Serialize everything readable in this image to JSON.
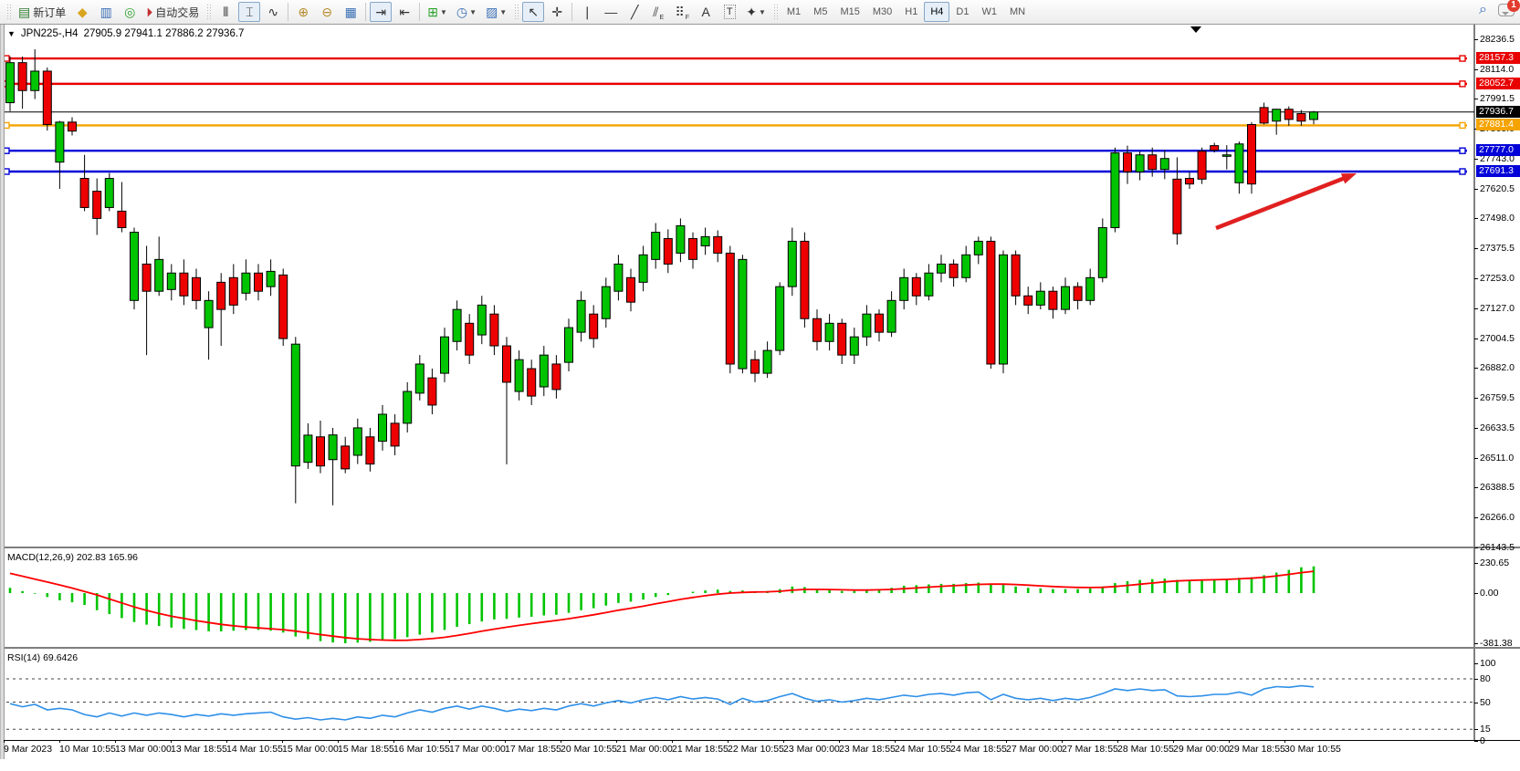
{
  "toolbar": {
    "new_order_label": "新订单",
    "auto_trading_label": "自动交易",
    "timeframes": [
      "M1",
      "M5",
      "M15",
      "M30",
      "H1",
      "H4",
      "D1",
      "W1",
      "MN"
    ],
    "active_timeframe": "H4",
    "notification_count": "1"
  },
  "chart": {
    "title_symbol": "JPN225-,H4",
    "title_ohlc": "27905.9 27941.1 27886.2 27936.7",
    "macd_label": "MACD(12,26,9) 202.83 165.96",
    "rsi_label": "RSI(14) 69.6426"
  },
  "chart_data": {
    "type": "candlestick",
    "symbol": "JPN225-",
    "period": "H4",
    "last_ohlc": {
      "open": 27905.9,
      "high": 27941.1,
      "low": 27886.2,
      "close": 27936.7
    },
    "colors": {
      "bull": "#00c400",
      "bear": "#ee0000",
      "outline": "#000000",
      "hline_red": "#e80000",
      "hline_orange": "#f5a300",
      "hline_blue": "#0000d8",
      "arrow": "#e02020",
      "rsi_line": "#2e8fe8",
      "macd_hist": "#00c400",
      "macd_signal": "#ff0000"
    },
    "price_axis_ticks": [
      28236.5,
      28114.0,
      27991.5,
      27869.0,
      27743.0,
      27620.5,
      27498.0,
      27375.5,
      27253.0,
      27127.0,
      27004.5,
      26882.0,
      26759.5,
      26633.5,
      26511.0,
      26388.5,
      26266.0,
      26143.5
    ],
    "price_badges": [
      {
        "value": "28157.3",
        "price": 28157.3,
        "color": "#e80000",
        "kind": "hline"
      },
      {
        "value": "28052.7",
        "price": 28052.7,
        "color": "#e80000",
        "kind": "hline"
      },
      {
        "value": "27936.7",
        "price": 27936.7,
        "color": "#000000",
        "kind": "bid"
      },
      {
        "value": "27881.4",
        "price": 27881.4,
        "color": "#f5a300",
        "kind": "hline"
      },
      {
        "value": "27777.0",
        "price": 27777.0,
        "color": "#0000d8",
        "kind": "hline"
      },
      {
        "value": "27691.3",
        "price": 27691.3,
        "color": "#0000d8",
        "kind": "hline"
      }
    ],
    "time_labels": [
      "9 Mar 2023",
      "10 Mar 10:55",
      "13 Mar 00:00",
      "13 Mar 18:55",
      "14 Mar 10:55",
      "15 Mar 00:00",
      "15 Mar 18:55",
      "16 Mar 10:55",
      "17 Mar 00:00",
      "17 Mar 18:55",
      "20 Mar 10:55",
      "21 Mar 00:00",
      "21 Mar 18:55",
      "22 Mar 10:55",
      "23 Mar 00:00",
      "23 Mar 18:55",
      "24 Mar 10:55",
      "24 Mar 18:55",
      "27 Mar 00:00",
      "27 Mar 18:55",
      "28 Mar 10:55",
      "29 Mar 00:00",
      "29 Mar 18:55",
      "30 Mar 10:55"
    ],
    "candles": [
      [
        27975,
        28165,
        27940,
        28140
      ],
      [
        28140,
        28165,
        27950,
        28025
      ],
      [
        28025,
        28195,
        27990,
        28105
      ],
      [
        28105,
        28120,
        27860,
        27885
      ],
      [
        27730,
        27900,
        27620,
        27895
      ],
      [
        27895,
        27915,
        27840,
        27858
      ],
      [
        27663,
        27760,
        27528,
        27543
      ],
      [
        27610,
        27663,
        27430,
        27498
      ],
      [
        27543,
        27685,
        27528,
        27663
      ],
      [
        27528,
        27648,
        27441,
        27460
      ],
      [
        27160,
        27460,
        27123,
        27441
      ],
      [
        27310,
        27385,
        26935,
        27198
      ],
      [
        27198,
        27423,
        27179,
        27329
      ],
      [
        27205,
        27310,
        27160,
        27273
      ],
      [
        27273,
        27329,
        27141,
        27179
      ],
      [
        27254,
        27291,
        27123,
        27160
      ],
      [
        27048,
        27198,
        26916,
        27160
      ],
      [
        27235,
        27273,
        26973,
        27123
      ],
      [
        27254,
        27310,
        27104,
        27141
      ],
      [
        27190,
        27329,
        27160,
        27273
      ],
      [
        27273,
        27310,
        27160,
        27198
      ],
      [
        27217,
        27329,
        27179,
        27280
      ],
      [
        27265,
        27291,
        26973,
        27003
      ],
      [
        26478,
        27010,
        26324,
        26980
      ],
      [
        26493,
        26654,
        26466,
        26605
      ],
      [
        26598,
        26665,
        26448,
        26478
      ],
      [
        26504,
        26635,
        26316,
        26606
      ],
      [
        26560,
        26598,
        26448,
        26466
      ],
      [
        26522,
        26673,
        26486,
        26635
      ],
      [
        26598,
        26635,
        26455,
        26486
      ],
      [
        26580,
        26729,
        26541,
        26691
      ],
      [
        26654,
        26691,
        26522,
        26560
      ],
      [
        26654,
        26823,
        26616,
        26785
      ],
      [
        26778,
        26935,
        26748,
        26898
      ],
      [
        26841,
        26879,
        26691,
        26729
      ],
      [
        26860,
        27048,
        26823,
        27010
      ],
      [
        26991,
        27160,
        26954,
        27123
      ],
      [
        27066,
        27104,
        26898,
        26935
      ],
      [
        27018,
        27179,
        26980,
        27141
      ],
      [
        27104,
        27141,
        26935,
        26973
      ],
      [
        26973,
        27010,
        26485,
        26823
      ],
      [
        26785,
        26954,
        26748,
        26916
      ],
      [
        26879,
        26916,
        26729,
        26766
      ],
      [
        26804,
        26973,
        26766,
        26935
      ],
      [
        26898,
        26935,
        26756,
        26793
      ],
      [
        26905,
        27085,
        26868,
        27048
      ],
      [
        27029,
        27198,
        26990,
        27160
      ],
      [
        27104,
        27141,
        26965,
        27003
      ],
      [
        27085,
        27254,
        27048,
        27217
      ],
      [
        27198,
        27348,
        27160,
        27310
      ],
      [
        27254,
        27291,
        27115,
        27153
      ],
      [
        27235,
        27385,
        27198,
        27348
      ],
      [
        27329,
        27479,
        27291,
        27441
      ],
      [
        27415,
        27453,
        27273,
        27310
      ],
      [
        27355,
        27498,
        27318,
        27468
      ],
      [
        27415,
        27441,
        27291,
        27329
      ],
      [
        27385,
        27460,
        27348,
        27423
      ],
      [
        27423,
        27449,
        27318,
        27355
      ],
      [
        27355,
        27385,
        26860,
        26898
      ],
      [
        26879,
        27348,
        26860,
        27329
      ],
      [
        26916,
        26954,
        26823,
        26860
      ],
      [
        26860,
        26991,
        26841,
        26954
      ],
      [
        26954,
        27235,
        26935,
        27217
      ],
      [
        27217,
        27460,
        27179,
        27404
      ],
      [
        27404,
        27441,
        27048,
        27085
      ],
      [
        27085,
        27123,
        26954,
        26991
      ],
      [
        26991,
        27104,
        26954,
        27066
      ],
      [
        27066,
        27085,
        26898,
        26935
      ],
      [
        26935,
        27048,
        26898,
        27010
      ],
      [
        27010,
        27141,
        26973,
        27104
      ],
      [
        27104,
        27123,
        26991,
        27029
      ],
      [
        27029,
        27198,
        27010,
        27160
      ],
      [
        27160,
        27291,
        27123,
        27254
      ],
      [
        27254,
        27273,
        27141,
        27179
      ],
      [
        27179,
        27310,
        27160,
        27273
      ],
      [
        27273,
        27348,
        27235,
        27310
      ],
      [
        27310,
        27329,
        27217,
        27254
      ],
      [
        27254,
        27385,
        27235,
        27348
      ],
      [
        27348,
        27423,
        27310,
        27404
      ],
      [
        27404,
        27423,
        26879,
        26898
      ],
      [
        26898,
        27366,
        26860,
        27348
      ],
      [
        27348,
        27366,
        27141,
        27179
      ],
      [
        27179,
        27217,
        27104,
        27141
      ],
      [
        27141,
        27235,
        27123,
        27198
      ],
      [
        27198,
        27217,
        27085,
        27123
      ],
      [
        27123,
        27254,
        27104,
        27217
      ],
      [
        27217,
        27235,
        27123,
        27160
      ],
      [
        27160,
        27291,
        27141,
        27254
      ],
      [
        27254,
        27498,
        27235,
        27460
      ],
      [
        27460,
        27790,
        27441,
        27768
      ],
      [
        27768,
        27798,
        27640,
        27690
      ],
      [
        27690,
        27775,
        27655,
        27760
      ],
      [
        27760,
        27790,
        27670,
        27700
      ],
      [
        27700,
        27780,
        27660,
        27745
      ],
      [
        27660,
        27750,
        27390,
        27435
      ],
      [
        27663,
        27690,
        27620,
        27640
      ],
      [
        27775,
        27790,
        27640,
        27660
      ],
      [
        27798,
        27810,
        27770,
        27779
      ],
      [
        27755,
        27800,
        27700,
        27760
      ],
      [
        27645,
        27815,
        27600,
        27805
      ],
      [
        27885,
        27895,
        27600,
        27640
      ],
      [
        27955,
        27975,
        27885,
        27891
      ],
      [
        27899,
        27950,
        27843,
        27948
      ],
      [
        27948,
        27960,
        27880,
        27906
      ],
      [
        27930,
        27945,
        27880,
        27899
      ],
      [
        27905.9,
        27941.1,
        27886.2,
        27936.7
      ]
    ],
    "macd": {
      "scale_labels": [
        "230.65",
        "0.00",
        "-381.38"
      ],
      "histogram": [
        40,
        15,
        -5,
        -30,
        -55,
        -70,
        -90,
        -130,
        -160,
        -190,
        -220,
        -240,
        -250,
        -262,
        -272,
        -281,
        -290,
        -291,
        -286,
        -281,
        -280,
        -286,
        -300,
        -330,
        -350,
        -365,
        -375,
        -381,
        -376,
        -370,
        -360,
        -349,
        -335,
        -316,
        -300,
        -280,
        -256,
        -236,
        -216,
        -200,
        -196,
        -186,
        -180,
        -170,
        -165,
        -150,
        -130,
        -115,
        -95,
        -75,
        -65,
        -50,
        -30,
        -15,
        0,
        10,
        20,
        26,
        16,
        20,
        10,
        16,
        30,
        50,
        46,
        30,
        26,
        16,
        16,
        26,
        30,
        40,
        56,
        60,
        66,
        70,
        70,
        76,
        80,
        70,
        66,
        50,
        40,
        36,
        30,
        30,
        30,
        36,
        50,
        76,
        90,
        100,
        106,
        110,
        100,
        96,
        96,
        100,
        106,
        116,
        120,
        136,
        156,
        176,
        196,
        202.83
      ],
      "signal": [
        150,
        128,
        106,
        84,
        62,
        38,
        12,
        -14,
        -45,
        -75,
        -105,
        -132,
        -155,
        -176,
        -193,
        -209,
        -224,
        -238,
        -249,
        -258,
        -265,
        -271,
        -278,
        -289,
        -302,
        -315,
        -327,
        -338,
        -347,
        -353,
        -357,
        -359,
        -358,
        -353,
        -346,
        -336,
        -322,
        -306,
        -290,
        -274,
        -259,
        -245,
        -232,
        -220,
        -208,
        -195,
        -180,
        -165,
        -148,
        -130,
        -115,
        -100,
        -82,
        -65,
        -48,
        -33,
        -20,
        -8,
        0,
        5,
        8,
        10,
        14,
        22,
        28,
        28,
        27,
        25,
        23,
        23,
        25,
        28,
        33,
        39,
        45,
        51,
        56,
        61,
        66,
        68,
        68,
        65,
        60,
        55,
        50,
        46,
        43,
        42,
        44,
        50,
        58,
        67,
        76,
        85,
        92,
        96,
        99,
        101,
        104,
        108,
        113,
        120,
        130,
        142,
        155,
        165.96
      ]
    },
    "rsi": {
      "scale_labels": [
        "100",
        "80",
        "50",
        "15",
        "0"
      ],
      "levels": [
        80,
        50,
        15
      ],
      "values": [
        48,
        44,
        47,
        40,
        42,
        40,
        34,
        31,
        36,
        32,
        36,
        33,
        36,
        34,
        31,
        34,
        32,
        35,
        33,
        35,
        36,
        37,
        31,
        28,
        30,
        27,
        29,
        27,
        31,
        29,
        33,
        31,
        36,
        40,
        37,
        42,
        45,
        41,
        45,
        42,
        38,
        41,
        39,
        42,
        40,
        45,
        48,
        45,
        49,
        52,
        49,
        53,
        56,
        53,
        57,
        54,
        56,
        54,
        47,
        55,
        50,
        52,
        57,
        61,
        55,
        51,
        53,
        50,
        52,
        55,
        53,
        56,
        59,
        57,
        60,
        61,
        59,
        62,
        63,
        53,
        60,
        55,
        53,
        55,
        52,
        55,
        53,
        56,
        61,
        67,
        65,
        67,
        65,
        66,
        58,
        57,
        58,
        60,
        60,
        63,
        59,
        67,
        70,
        69,
        71,
        69.64
      ]
    },
    "arrow": {
      "from": [
        1332,
        250
      ],
      "to": [
        1486,
        190
      ]
    }
  }
}
